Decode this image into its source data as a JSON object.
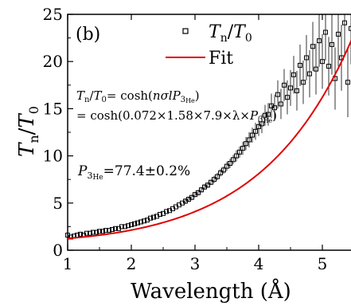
{
  "chart_data": {
    "type": "scatter",
    "panel_label": "(b)",
    "xlabel": "Wavelength (Å)",
    "ylabel_main": "T",
    "ylabel_sub": "n",
    "ylabel_den": "T",
    "ylabel_den_sub": "0",
    "xlim": [
      1,
      5.5
    ],
    "ylim": [
      0,
      25
    ],
    "x_ticks": [
      1,
      2,
      3,
      4,
      5
    ],
    "y_ticks": [
      0,
      5,
      10,
      15,
      20,
      25
    ],
    "legend": {
      "data_label_main": "T",
      "data_label_sub": "n",
      "data_label_den": "T",
      "data_label_den_sub": "0",
      "fit_label": "Fit",
      "placement": "top-center"
    },
    "annotations": {
      "line1_lhs": "T",
      "line1_lhs_sub": "n",
      "line1_slash": "/",
      "line1_den": "T",
      "line1_den_sub": "0",
      "line1_eq": "= cosh(",
      "line1_arg": "nσlP",
      "line1_arg_sub": "3",
      "line1_arg_subsub": "He",
      "line1_close": ")",
      "line2_prefix": "= cosh(0.072×1.58×7.9×λ×",
      "line2_p": "P",
      "line2_p_sub": "3",
      "line2_p_subsub": "He",
      "line2_close": ")",
      "line3_p": "P",
      "line3_p_sub": "3",
      "line3_p_subsub": "He",
      "line3_value": "=77.4±0.2%"
    },
    "fit": {
      "name": "Fit",
      "color": "#e00000",
      "coefficient": 0.072,
      "length": 1.58,
      "factor": 7.9,
      "polarization": 0.774
    },
    "series": [
      {
        "name": "T_n/T_0",
        "marker": "open-square",
        "color": "#000000",
        "x": [
          1.0,
          1.05,
          1.1,
          1.15,
          1.2,
          1.25,
          1.3,
          1.35,
          1.4,
          1.45,
          1.5,
          1.55,
          1.6,
          1.65,
          1.7,
          1.75,
          1.8,
          1.85,
          1.9,
          1.95,
          2.0,
          2.05,
          2.1,
          2.15,
          2.2,
          2.25,
          2.3,
          2.35,
          2.4,
          2.45,
          2.5,
          2.55,
          2.6,
          2.65,
          2.7,
          2.75,
          2.8,
          2.85,
          2.9,
          2.95,
          3.0,
          3.05,
          3.1,
          3.15,
          3.2,
          3.25,
          3.3,
          3.35,
          3.4,
          3.45,
          3.5,
          3.55,
          3.6,
          3.65,
          3.7,
          3.75,
          3.8,
          3.85,
          3.9,
          3.95,
          4.0,
          4.05,
          4.1,
          4.15,
          4.2,
          4.25,
          4.3,
          4.35,
          4.4,
          4.45,
          4.5,
          4.55,
          4.6,
          4.65,
          4.7,
          4.75,
          4.8,
          4.85,
          4.9,
          4.95,
          5.0,
          5.05,
          5.1,
          5.15,
          5.2,
          5.25,
          5.3,
          5.35,
          5.4,
          5.45
        ],
        "y": [
          1.6,
          1.4,
          1.5,
          1.6,
          1.7,
          1.6,
          1.8,
          1.8,
          1.9,
          1.9,
          2.0,
          2.0,
          2.1,
          2.1,
          2.2,
          2.3,
          2.3,
          2.5,
          2.5,
          2.6,
          2.7,
          2.8,
          2.9,
          3.0,
          3.1,
          3.2,
          3.4,
          3.5,
          3.6,
          3.8,
          3.9,
          4.1,
          4.2,
          4.4,
          4.6,
          4.8,
          5.0,
          5.2,
          5.4,
          5.6,
          5.9,
          6.1,
          6.4,
          6.7,
          6.9,
          7.2,
          7.5,
          7.8,
          8.2,
          8.5,
          8.9,
          9.2,
          9.6,
          10.0,
          10.4,
          10.8,
          11.3,
          11.7,
          12.2,
          12.6,
          13.1,
          13.4,
          14.3,
          14.4,
          15.3,
          15.1,
          16.5,
          15.5,
          17.5,
          16.2,
          17.2,
          18.6,
          16.9,
          19.6,
          17.8,
          20.4,
          18.7,
          21.6,
          19.2,
          22.2,
          20.0,
          23.1,
          19.5,
          21.8,
          18.2,
          22.9,
          20.4,
          24.1,
          17.8,
          23.5
        ],
        "err": [
          0.3,
          0.2,
          0.2,
          0.2,
          0.2,
          0.2,
          0.2,
          0.2,
          0.2,
          0.2,
          0.2,
          0.2,
          0.2,
          0.2,
          0.2,
          0.2,
          0.2,
          0.2,
          0.2,
          0.2,
          0.2,
          0.2,
          0.2,
          0.2,
          0.2,
          0.2,
          0.2,
          0.2,
          0.2,
          0.2,
          0.2,
          0.2,
          0.2,
          0.2,
          0.2,
          0.2,
          0.2,
          0.3,
          0.3,
          0.3,
          0.3,
          0.3,
          0.3,
          0.3,
          0.3,
          0.3,
          0.4,
          0.4,
          0.4,
          0.4,
          0.5,
          0.5,
          0.5,
          0.6,
          0.6,
          0.7,
          0.7,
          0.8,
          0.8,
          0.9,
          1.0,
          1.0,
          1.1,
          1.2,
          1.3,
          1.4,
          1.5,
          1.6,
          1.7,
          1.8,
          1.9,
          2.0,
          2.1,
          2.2,
          2.3,
          2.4,
          2.5,
          2.6,
          2.7,
          2.8,
          2.9,
          3.0,
          3.1,
          3.2,
          3.3,
          3.4,
          3.5,
          3.6,
          3.7,
          3.8
        ]
      }
    ]
  }
}
